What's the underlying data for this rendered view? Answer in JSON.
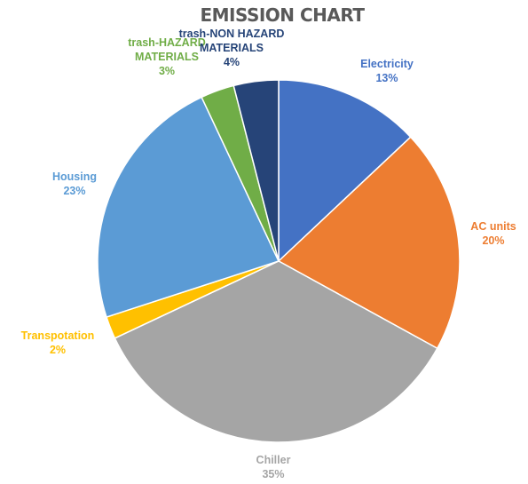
{
  "chart_data": {
    "type": "pie",
    "title": "EMISSION CHART",
    "start_angle_deg": 0,
    "direction": "clockwise",
    "slices": [
      {
        "name": "Electricity",
        "label_lines": [
          "Electricity"
        ],
        "value": 13,
        "percent_label": "13%",
        "color": "#4472C4"
      },
      {
        "name": "AC units",
        "label_lines": [
          "AC units"
        ],
        "value": 20,
        "percent_label": "20%",
        "color": "#ED7D31"
      },
      {
        "name": "Chiller",
        "label_lines": [
          "Chiller"
        ],
        "value": 35,
        "percent_label": "35%",
        "color": "#A5A5A5"
      },
      {
        "name": "Transpotation",
        "label_lines": [
          "Transpotation"
        ],
        "value": 2,
        "percent_label": "2%",
        "color": "#FFC000"
      },
      {
        "name": "Housing",
        "label_lines": [
          "Housing"
        ],
        "value": 23,
        "percent_label": "23%",
        "color": "#5B9BD5"
      },
      {
        "name": "trash-HAZARD MATERIALS",
        "label_lines": [
          "trash-HAZARD",
          "MATERIALS"
        ],
        "value": 3,
        "percent_label": "3%",
        "color": "#70AD47"
      },
      {
        "name": "trash-NON HAZARD MATERIALS",
        "label_lines": [
          "trash-NON HAZARD",
          "MATERIALS"
        ],
        "value": 4,
        "percent_label": "4%",
        "color": "#264478"
      }
    ],
    "legend": "none",
    "data_labels": "outside"
  }
}
